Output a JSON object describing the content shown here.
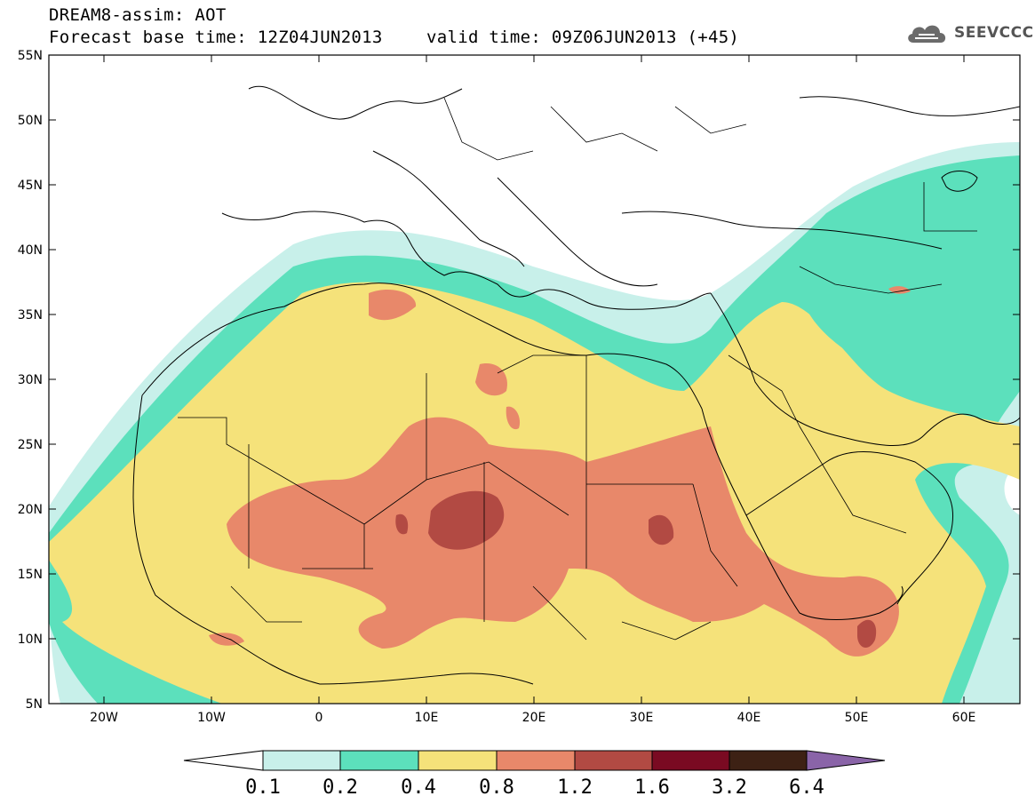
{
  "header": {
    "line1": "DREAM8-assim: AOT",
    "line2": "Forecast base time: 12Z04JUN2013",
    "valid": "valid time: 09Z06JUN2013 (+45)"
  },
  "logo": {
    "icon": "cloud-logo-icon",
    "text": "SEEVCCC"
  },
  "axes": {
    "lat_labels": [
      "55N",
      "50N",
      "45N",
      "40N",
      "35N",
      "30N",
      "25N",
      "20N",
      "15N",
      "10N",
      "5N"
    ],
    "lon_labels": [
      "20W",
      "10W",
      "0",
      "10E",
      "20E",
      "30E",
      "40E",
      "50E",
      "60E"
    ]
  },
  "colorbar": {
    "labels": [
      "0.1",
      "0.2",
      "0.4",
      "0.8",
      "1.2",
      "1.6",
      "3.2",
      "6.4"
    ],
    "colors": [
      "#ffffff",
      "#c8f0ea",
      "#5ce0bc",
      "#f5e27a",
      "#e8886a",
      "#b24a43",
      "#7a0a22",
      "#3d2114",
      "#8a64a8"
    ]
  },
  "colors": {
    "c01": "#c8f0ea",
    "c02": "#5ce0bc",
    "c04": "#f5e27a",
    "c08": "#e8886a",
    "c12": "#b24a43",
    "border": "#000000"
  }
}
